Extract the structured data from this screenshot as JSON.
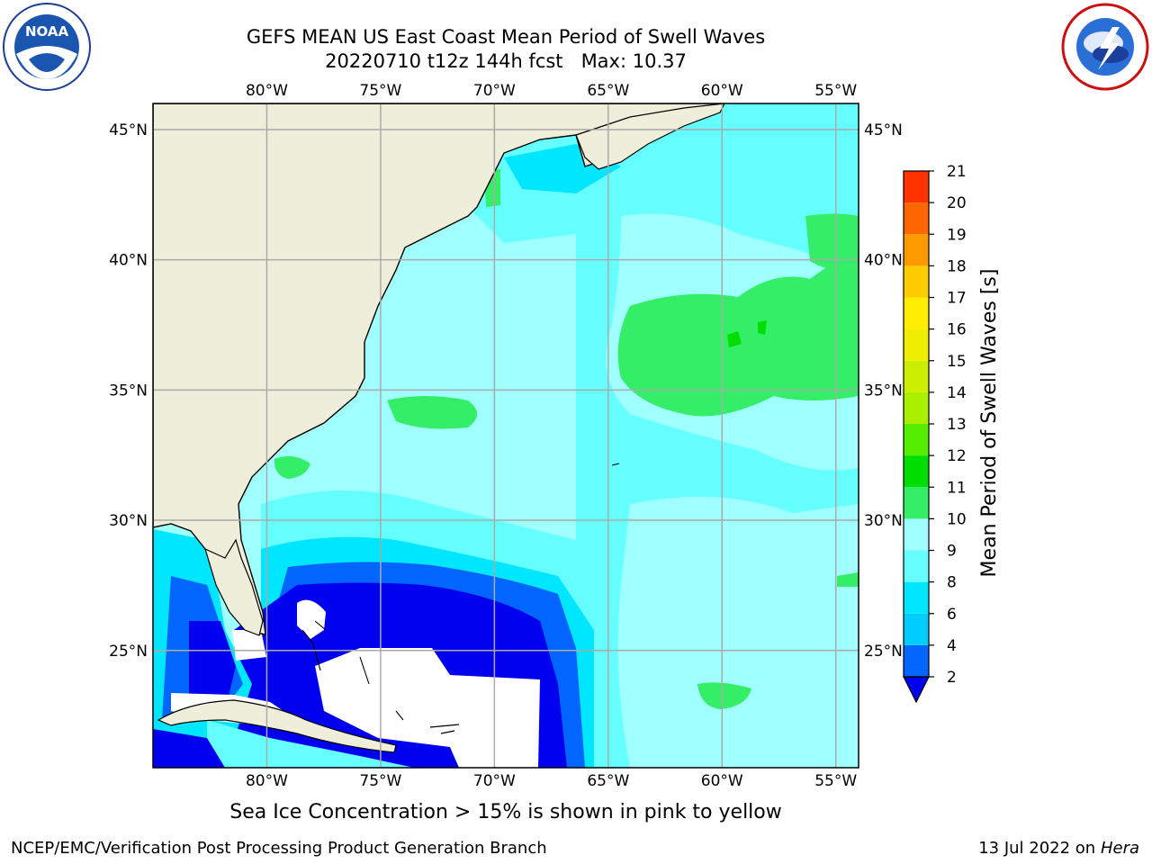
{
  "header": {
    "title_line1": "GEFS MEAN US East Coast Mean Period of Swell Waves",
    "title_line2": "20220710 t12z 144h fcst   Max: 10.37"
  },
  "logos": {
    "left": {
      "name": "NOAA",
      "ring_text": "NATIONAL OCEANIC AND ATMOSPHERIC ADMINISTRATION · U.S. DEPARTMENT OF COMMERCE"
    },
    "right": {
      "name": "NATIONAL WEATHER SERVICE"
    }
  },
  "map": {
    "lon_labels": [
      "80°W",
      "75°W",
      "70°W",
      "65°W",
      "60°W",
      "55°W"
    ],
    "lat_labels": [
      "45°N",
      "40°N",
      "35°N",
      "30°N",
      "25°N"
    ],
    "lon_range": [
      -85,
      -54
    ],
    "lat_range": [
      20.5,
      46
    ]
  },
  "colorbar": {
    "label": "Mean Period of Swell Waves [s]",
    "ticks": [
      "2",
      "4",
      "6",
      "8",
      "9",
      "10",
      "11",
      "12",
      "13",
      "14",
      "15",
      "16",
      "17",
      "18",
      "19",
      "20",
      "21"
    ],
    "colors": [
      "#0066ff",
      "#00ccff",
      "#00e6ff",
      "#66ffff",
      "#a0ffff",
      "#33ee66",
      "#00dd00",
      "#55ee00",
      "#aaee00",
      "#ccee00",
      "#eeee00",
      "#ffee00",
      "#ffcc00",
      "#ff9900",
      "#ff6600",
      "#ff3300"
    ],
    "under_color": "#0000ee"
  },
  "subtitle": "Sea Ice Concentration > 15% is shown in pink to yellow",
  "footer": {
    "left": "NCEP/EMC/Verification Post Processing Product Generation Branch",
    "right_prefix": "13 Jul 2022 on ",
    "right_host": "Hera"
  }
}
